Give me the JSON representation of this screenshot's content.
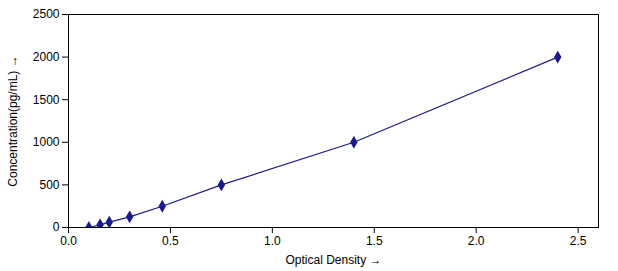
{
  "chart_data": {
    "type": "line",
    "x": [
      0.1,
      0.155,
      0.2,
      0.3,
      0.46,
      0.75,
      1.4,
      2.4
    ],
    "values": [
      0,
      31.25,
      62.5,
      125,
      250,
      500,
      1000,
      2000
    ],
    "xlabel": "Optical Density",
    "ylabel": "Concentration(pg/mL)",
    "xlim": [
      0.0,
      2.6
    ],
    "ylim": [
      0,
      2500
    ],
    "xticks": [
      {
        "value": 0,
        "label": "0.0"
      },
      0.5,
      {
        "value": 1.0,
        "label": "1.0"
      },
      1.5,
      {
        "value": 2.0,
        "label": "2.0"
      },
      2.5
    ],
    "yticks": [
      0,
      500,
      1000,
      1500,
      2000,
      2500
    ],
    "color": "#1a1a8c",
    "marker": "diamond",
    "grid": false
  }
}
